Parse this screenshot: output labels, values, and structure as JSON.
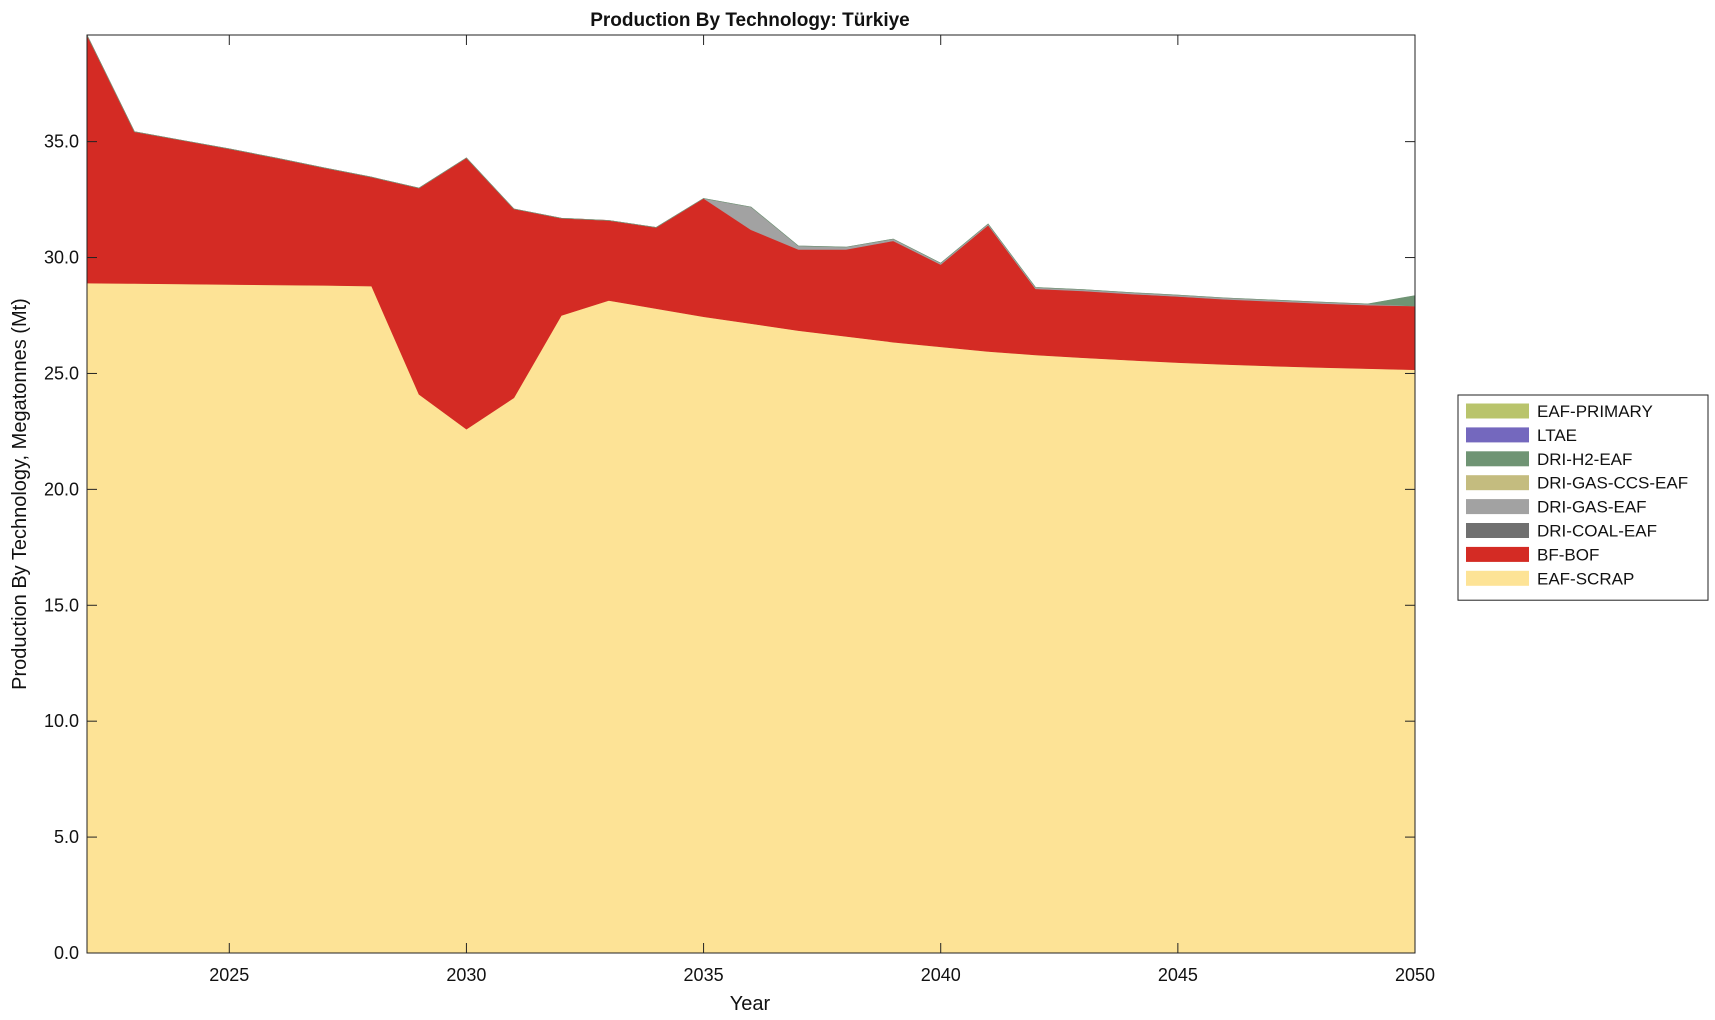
{
  "chart_data": {
    "type": "area",
    "stacked": true,
    "title": "Production By Technology: Türkiye",
    "xlabel": "Year",
    "ylabel": "Production By Technology, Megatonnes (Mt)",
    "xlim": [
      2022,
      2050
    ],
    "ylim": [
      0,
      39.6
    ],
    "xticks": [
      2025,
      2030,
      2035,
      2040,
      2045,
      2050
    ],
    "yticks": [
      0,
      5,
      10,
      15,
      20,
      25,
      30,
      35
    ],
    "ytick_labels": [
      "0.0",
      "5.0",
      "10.0",
      "15.0",
      "20.0",
      "25.0",
      "30.0",
      "35.0"
    ],
    "grid": false,
    "legend_position": "right",
    "x": [
      2022,
      2023,
      2024,
      2025,
      2026,
      2027,
      2028,
      2029,
      2030,
      2031,
      2032,
      2033,
      2034,
      2035,
      2036,
      2037,
      2038,
      2039,
      2040,
      2041,
      2042,
      2043,
      2044,
      2045,
      2046,
      2047,
      2048,
      2049,
      2050
    ],
    "series": [
      {
        "name": "EAF-SCRAP",
        "color": "#FDE396",
        "values": [
          28.9,
          28.88,
          28.86,
          28.84,
          28.82,
          28.8,
          28.77,
          24.1,
          22.6,
          23.95,
          27.5,
          28.15,
          27.8,
          27.45,
          27.15,
          26.85,
          26.6,
          26.35,
          26.15,
          25.95,
          25.8,
          25.68,
          25.57,
          25.47,
          25.39,
          25.32,
          25.26,
          25.21,
          25.16
        ]
      },
      {
        "name": "BF-BOF",
        "color": "#D42B24",
        "values": [
          10.7,
          6.55,
          6.2,
          5.85,
          5.47,
          5.07,
          4.7,
          8.9,
          11.7,
          8.15,
          4.2,
          3.45,
          3.5,
          5.1,
          4.05,
          3.5,
          3.75,
          4.37,
          3.55,
          5.45,
          2.85,
          2.88,
          2.86,
          2.85,
          2.81,
          2.79,
          2.76,
          2.74,
          2.75
        ]
      },
      {
        "name": "DRI-COAL-EAF",
        "color": "#707070",
        "values": [
          0,
          0,
          0,
          0,
          0,
          0,
          0,
          0,
          0,
          0,
          0,
          0,
          0,
          0,
          0,
          0,
          0,
          0,
          0,
          0,
          0,
          0,
          0,
          0,
          0,
          0,
          0,
          0,
          0
        ]
      },
      {
        "name": "DRI-GAS-EAF",
        "color": "#A2A2A2",
        "values": [
          0,
          0,
          0,
          0,
          0,
          0,
          0,
          0,
          0,
          0,
          0,
          0,
          0,
          0,
          0.98,
          0.15,
          0.1,
          0.08,
          0.06,
          0.05,
          0.06,
          0.06,
          0.06,
          0.06,
          0.06,
          0.06,
          0.06,
          0.05,
          0
        ]
      },
      {
        "name": "DRI-GAS-CCS-EAF",
        "color": "#C4BC7F",
        "values": [
          0,
          0,
          0,
          0,
          0,
          0,
          0,
          0,
          0,
          0,
          0,
          0,
          0,
          0,
          0,
          0,
          0,
          0,
          0,
          0,
          0,
          0,
          0,
          0,
          0,
          0,
          0,
          0,
          0
        ]
      },
      {
        "name": "DRI-H2-EAF",
        "color": "#6F9474",
        "values": [
          0,
          0,
          0,
          0,
          0,
          0,
          0,
          0,
          0,
          0,
          0,
          0,
          0,
          0,
          0,
          0,
          0,
          0,
          0,
          0,
          0,
          0,
          0,
          0,
          0,
          0,
          0,
          0,
          0.45
        ]
      },
      {
        "name": "LTAE",
        "color": "#7468BE",
        "values": [
          0,
          0,
          0,
          0,
          0,
          0,
          0,
          0,
          0,
          0,
          0,
          0,
          0,
          0,
          0,
          0,
          0,
          0,
          0,
          0,
          0,
          0,
          0,
          0,
          0,
          0,
          0,
          0,
          0
        ]
      },
      {
        "name": "EAF-PRIMARY",
        "color": "#B9C46C",
        "values": [
          0,
          0,
          0,
          0,
          0,
          0,
          0,
          0,
          0,
          0,
          0,
          0,
          0,
          0,
          0,
          0,
          0,
          0,
          0,
          0,
          0,
          0,
          0,
          0,
          0,
          0,
          0,
          0,
          0
        ]
      }
    ],
    "legend_order": [
      "EAF-PRIMARY",
      "LTAE",
      "DRI-H2-EAF",
      "DRI-GAS-CCS-EAF",
      "DRI-GAS-EAF",
      "DRI-COAL-EAF",
      "BF-BOF",
      "EAF-SCRAP"
    ]
  }
}
